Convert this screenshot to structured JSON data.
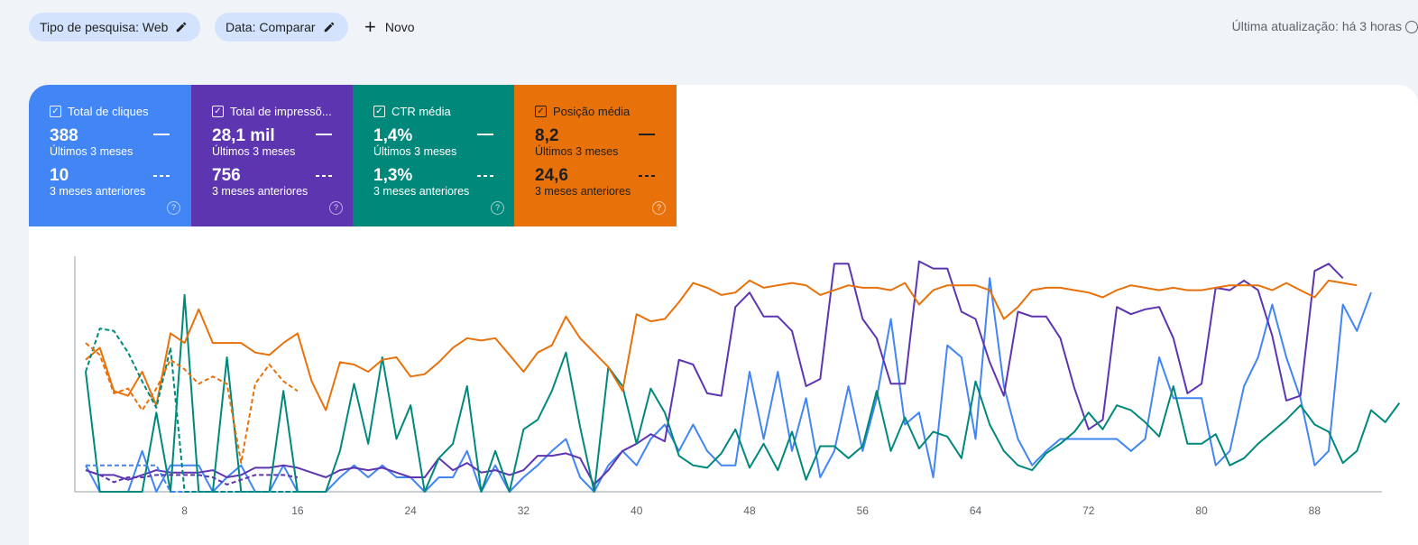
{
  "filters": {
    "search_type": "Tipo de pesquisa: Web",
    "date": "Data: Comparar",
    "new_label": "Novo"
  },
  "last_updated": "Última atualização: há 3 horas",
  "metrics": [
    {
      "title": "Total de cliques",
      "current": "388",
      "current_label": "Últimos 3 meses",
      "previous": "10",
      "previous_label": "3 meses anteriores",
      "color": "#4285f4"
    },
    {
      "title": "Total de impressõ...",
      "current": "28,1 mil",
      "current_label": "Últimos 3 meses",
      "previous": "756",
      "previous_label": "3 meses anteriores",
      "color": "#5e35b1"
    },
    {
      "title": "CTR média",
      "current": "1,4%",
      "current_label": "Últimos 3 meses",
      "previous": "1,3%",
      "previous_label": "3 meses anteriores",
      "color": "#00897b"
    },
    {
      "title": "Posição média",
      "current": "8,2",
      "current_label": "Últimos 3 meses",
      "previous": "24,6",
      "previous_label": "3 meses anteriores",
      "color": "#e8710a"
    }
  ],
  "chart_data": {
    "type": "line",
    "x_ticks": [
      "8",
      "16",
      "24",
      "32",
      "40",
      "48",
      "56",
      "64",
      "72",
      "80",
      "88"
    ],
    "x_range": [
      1,
      92
    ],
    "y_range": [
      0,
      1
    ],
    "grid": false,
    "series": [
      {
        "name": "Total de cliques",
        "style": "solid",
        "color": "#4285f4",
        "values": [
          0.11,
          0.0,
          0.0,
          0.0,
          0.17,
          0.0,
          0.11,
          0.11,
          0.11,
          0.0,
          0.06,
          0.11,
          0.0,
          0.0,
          0.11,
          0.0,
          0.0,
          0.0,
          0.06,
          0.11,
          0.06,
          0.11,
          0.06,
          0.06,
          0.0,
          0.06,
          0.06,
          0.17,
          0.0,
          0.11,
          0.0,
          0.06,
          0.11,
          0.17,
          0.22,
          0.06,
          0.0,
          0.11,
          0.17,
          0.11,
          0.22,
          0.28,
          0.17,
          0.28,
          0.17,
          0.11,
          0.11,
          0.5,
          0.22,
          0.5,
          0.17,
          0.39,
          0.06,
          0.17,
          0.44,
          0.17,
          0.39,
          0.72,
          0.28,
          0.33,
          0.06,
          0.61,
          0.56,
          0.22,
          0.89,
          0.44,
          0.22,
          0.11,
          0.17,
          0.22,
          0.22,
          0.22,
          0.22,
          0.22,
          0.17,
          0.22,
          0.56,
          0.39,
          0.39,
          0.39,
          0.11,
          0.17,
          0.44,
          0.56,
          0.78,
          0.56,
          0.39,
          0.11,
          0.17,
          0.78,
          0.67,
          0.83
        ]
      },
      {
        "name": "Total de impressões",
        "style": "solid",
        "color": "#5e35b1",
        "values": [
          0.09,
          0.07,
          0.07,
          0.05,
          0.07,
          0.09,
          0.08,
          0.08,
          0.08,
          0.09,
          0.06,
          0.07,
          0.1,
          0.1,
          0.11,
          0.1,
          0.08,
          0.06,
          0.09,
          0.1,
          0.09,
          0.1,
          0.08,
          0.06,
          0.06,
          0.14,
          0.09,
          0.12,
          0.08,
          0.09,
          0.07,
          0.09,
          0.15,
          0.15,
          0.16,
          0.14,
          0.03,
          0.09,
          0.17,
          0.2,
          0.24,
          0.21,
          0.55,
          0.53,
          0.41,
          0.4,
          0.77,
          0.83,
          0.73,
          0.73,
          0.67,
          0.44,
          0.47,
          0.95,
          0.95,
          0.72,
          0.64,
          0.45,
          0.45,
          0.96,
          0.93,
          0.93,
          0.75,
          0.72,
          0.54,
          0.4,
          0.75,
          0.73,
          0.73,
          0.64,
          0.43,
          0.26,
          0.3,
          0.77,
          0.74,
          0.76,
          0.77,
          0.64,
          0.41,
          0.45,
          0.85,
          0.84,
          0.88,
          0.84,
          0.65,
          0.38,
          0.4,
          0.92,
          0.95,
          0.89
        ]
      },
      {
        "name": "CTR média",
        "style": "solid",
        "color": "#00897b",
        "values": [
          0.5,
          0.0,
          0.0,
          0.0,
          0.0,
          0.33,
          0.0,
          0.82,
          0.0,
          0.0,
          0.56,
          0.0,
          0.0,
          0.0,
          0.42,
          0.0,
          0.0,
          0.0,
          0.17,
          0.45,
          0.2,
          0.56,
          0.22,
          0.36,
          0.0,
          0.14,
          0.2,
          0.44,
          0.0,
          0.17,
          0.0,
          0.26,
          0.3,
          0.42,
          0.58,
          0.27,
          0.0,
          0.52,
          0.44,
          0.2,
          0.43,
          0.33,
          0.15,
          0.11,
          0.1,
          0.16,
          0.26,
          0.1,
          0.2,
          0.09,
          0.25,
          0.05,
          0.19,
          0.19,
          0.14,
          0.19,
          0.42,
          0.17,
          0.31,
          0.18,
          0.25,
          0.23,
          0.14,
          0.46,
          0.28,
          0.17,
          0.11,
          0.09,
          0.16,
          0.2,
          0.25,
          0.33,
          0.26,
          0.36,
          0.34,
          0.29,
          0.23,
          0.44,
          0.2,
          0.2,
          0.24,
          0.11,
          0.14,
          0.2,
          0.25,
          0.3,
          0.36,
          0.28,
          0.25,
          0.12,
          0.17,
          0.34,
          0.29,
          0.37
        ]
      },
      {
        "name": "Posição média",
        "style": "solid",
        "color": "#e8710a",
        "values": [
          0.55,
          0.6,
          0.42,
          0.4,
          0.5,
          0.36,
          0.66,
          0.62,
          0.76,
          0.62,
          0.62,
          0.62,
          0.58,
          0.57,
          0.62,
          0.66,
          0.46,
          0.34,
          0.54,
          0.53,
          0.5,
          0.55,
          0.56,
          0.48,
          0.49,
          0.54,
          0.6,
          0.64,
          0.63,
          0.64,
          0.57,
          0.5,
          0.58,
          0.61,
          0.73,
          0.64,
          0.58,
          0.52,
          0.42,
          0.74,
          0.71,
          0.72,
          0.79,
          0.87,
          0.85,
          0.82,
          0.83,
          0.88,
          0.85,
          0.86,
          0.87,
          0.86,
          0.82,
          0.84,
          0.86,
          0.85,
          0.85,
          0.84,
          0.87,
          0.78,
          0.84,
          0.86,
          0.86,
          0.86,
          0.84,
          0.72,
          0.77,
          0.84,
          0.85,
          0.85,
          0.84,
          0.83,
          0.81,
          0.84,
          0.86,
          0.85,
          0.84,
          0.85,
          0.84,
          0.84,
          0.85,
          0.86,
          0.86,
          0.86,
          0.84,
          0.87,
          0.84,
          0.81,
          0.88,
          0.87,
          0.86
        ]
      },
      {
        "name": "Total de cliques (3 meses anteriores)",
        "style": "dashed",
        "color": "#4285f4",
        "values": [
          0.11,
          0.11,
          0.11,
          0.11,
          0.11,
          0.11,
          0.0,
          0.0,
          0.0,
          0.0,
          0.0,
          0.0,
          0.0,
          0.0,
          0.0,
          0.0
        ]
      },
      {
        "name": "Total de impressões (3 meses anteriores)",
        "style": "dashed",
        "color": "#5e35b1",
        "values": [
          0.09,
          0.07,
          0.04,
          0.06,
          0.06,
          0.07,
          0.07,
          0.07,
          0.07,
          0.06,
          0.03,
          0.05,
          0.07,
          0.07,
          0.07,
          0.06
        ]
      },
      {
        "name": "CTR média (3 meses anteriores)",
        "style": "dashed",
        "color": "#00897b",
        "values": [
          0.5,
          0.68,
          0.67,
          0.58,
          0.46,
          0.35,
          0.6,
          0.0,
          0.0,
          0.0,
          0.0,
          0.0,
          0.0,
          0.0,
          0.0,
          0.0
        ]
      },
      {
        "name": "Posição média (3 meses anteriores)",
        "style": "dashed",
        "color": "#e8710a",
        "values": [
          0.62,
          0.57,
          0.41,
          0.43,
          0.34,
          0.43,
          0.55,
          0.51,
          0.45,
          0.48,
          0.45,
          0.12,
          0.45,
          0.53,
          0.46,
          0.42
        ]
      }
    ]
  }
}
